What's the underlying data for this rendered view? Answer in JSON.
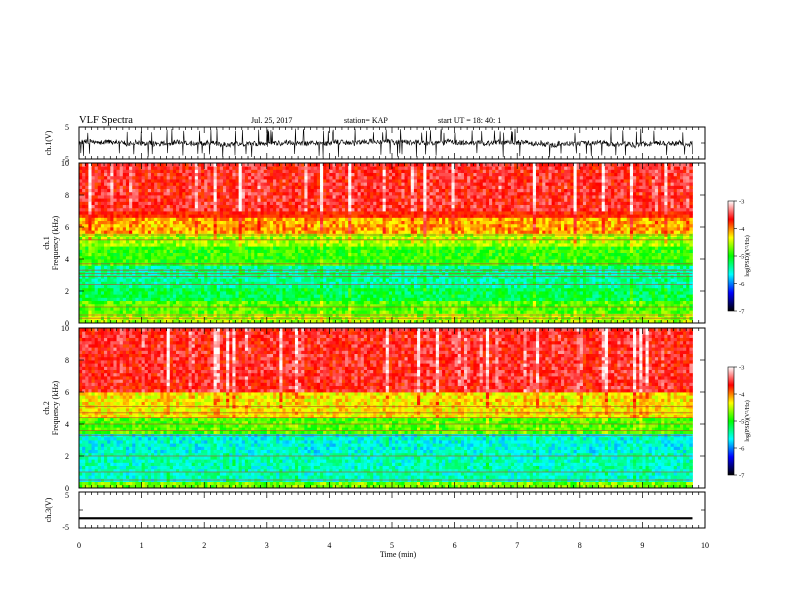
{
  "header": {
    "title": "VLF Spectra",
    "date": "Jul. 25, 2017",
    "station": "station= KAP",
    "start": "start  UT =   18: 40: 1"
  },
  "chart_data": [
    {
      "type": "line",
      "name": "ch1-voltage",
      "ylabel": "ch.1(V)",
      "ylim": [
        -5,
        5
      ],
      "yticks": [
        "5",
        "-5"
      ],
      "xlim": [
        0,
        10
      ],
      "trace_end_min": 9.8,
      "trace_level_V": 0,
      "trace_band_V": [
        -4.5,
        4.5
      ],
      "color": "#000000"
    },
    {
      "type": "heatmap",
      "name": "ch1-spectrogram",
      "ylabel": "ch.1",
      "ylabel2": "Frequency (kHz)",
      "xlim": [
        0,
        10
      ],
      "ylim": [
        0,
        10
      ],
      "yticks": [
        "0",
        "2",
        "4",
        "6",
        "8",
        "10"
      ],
      "data_end_min": 9.8,
      "bands_kHz": [
        {
          "from": 0,
          "to": 0.6,
          "level": -4.6
        },
        {
          "from": 0.6,
          "to": 1.5,
          "level": -4.8
        },
        {
          "from": 1.5,
          "to": 2.2,
          "level": -5.2
        },
        {
          "from": 2.2,
          "to": 3.6,
          "level": -5.4
        },
        {
          "from": 3.6,
          "to": 4.8,
          "level": -4.9
        },
        {
          "from": 4.8,
          "to": 5.6,
          "level": -4.6
        },
        {
          "from": 5.6,
          "to": 7.0,
          "level": -4.1
        },
        {
          "from": 7.0,
          "to": 10.0,
          "level": -3.6
        }
      ],
      "lines_kHz": [
        0.3,
        0.5,
        1.0,
        2.4,
        2.9,
        3.1,
        3.3,
        3.7,
        5.2,
        5.5
      ],
      "colorbar": {
        "label": "log(PSD)(V²/Hz)",
        "range": [
          -7,
          -3
        ],
        "ticks": [
          "-3",
          "-4",
          "-5",
          "-6",
          "-7"
        ],
        "colors": [
          "#000000",
          "#0000ff",
          "#00ffff",
          "#00ff00",
          "#ffff00",
          "#ff0000",
          "#ffffff"
        ]
      }
    },
    {
      "type": "heatmap",
      "name": "ch2-spectrogram",
      "ylabel": "ch.2",
      "ylabel2": "Frequency (kHz)",
      "xlim": [
        0,
        10
      ],
      "ylim": [
        0,
        10
      ],
      "yticks": [
        "0",
        "2",
        "4",
        "6",
        "8",
        "10"
      ],
      "data_end_min": 9.8,
      "bands_kHz": [
        {
          "from": 0,
          "to": 0.4,
          "level": -4.7
        },
        {
          "from": 0.4,
          "to": 2.3,
          "level": -5.5
        },
        {
          "from": 2.3,
          "to": 3.4,
          "level": -5.6
        },
        {
          "from": 3.4,
          "to": 4.5,
          "level": -4.8
        },
        {
          "from": 4.5,
          "to": 6.0,
          "level": -4.3
        },
        {
          "from": 6.0,
          "to": 10.0,
          "level": -3.6
        }
      ],
      "lines_kHz": [
        0.5,
        1.0,
        2.0,
        3.3,
        3.6,
        4.0,
        4.4,
        4.7,
        5.1
      ],
      "colorbar": {
        "label": "log(PSD)(V²/Hz)",
        "range": [
          -7,
          -3
        ],
        "ticks": [
          "-3",
          "-4",
          "-5",
          "-6",
          "-7"
        ],
        "colors": [
          "#000000",
          "#0000ff",
          "#00ffff",
          "#00ff00",
          "#ffff00",
          "#ff0000",
          "#ffffff"
        ]
      }
    },
    {
      "type": "line",
      "name": "ch3-voltage",
      "ylabel": "ch.3(V)",
      "ylim": [
        -5,
        5
      ],
      "yticks": [
        "5",
        "-5"
      ],
      "xlim": [
        0,
        10
      ],
      "trace_end_min": 9.8,
      "trace_level_V": -2.3,
      "trace_band_V": [
        -2.6,
        -2.0
      ],
      "color": "#000000"
    }
  ],
  "xaxis": {
    "label": "Time (min)",
    "ticks": [
      "0",
      "1",
      "2",
      "3",
      "4",
      "5",
      "6",
      "7",
      "8",
      "9",
      "10"
    ]
  }
}
